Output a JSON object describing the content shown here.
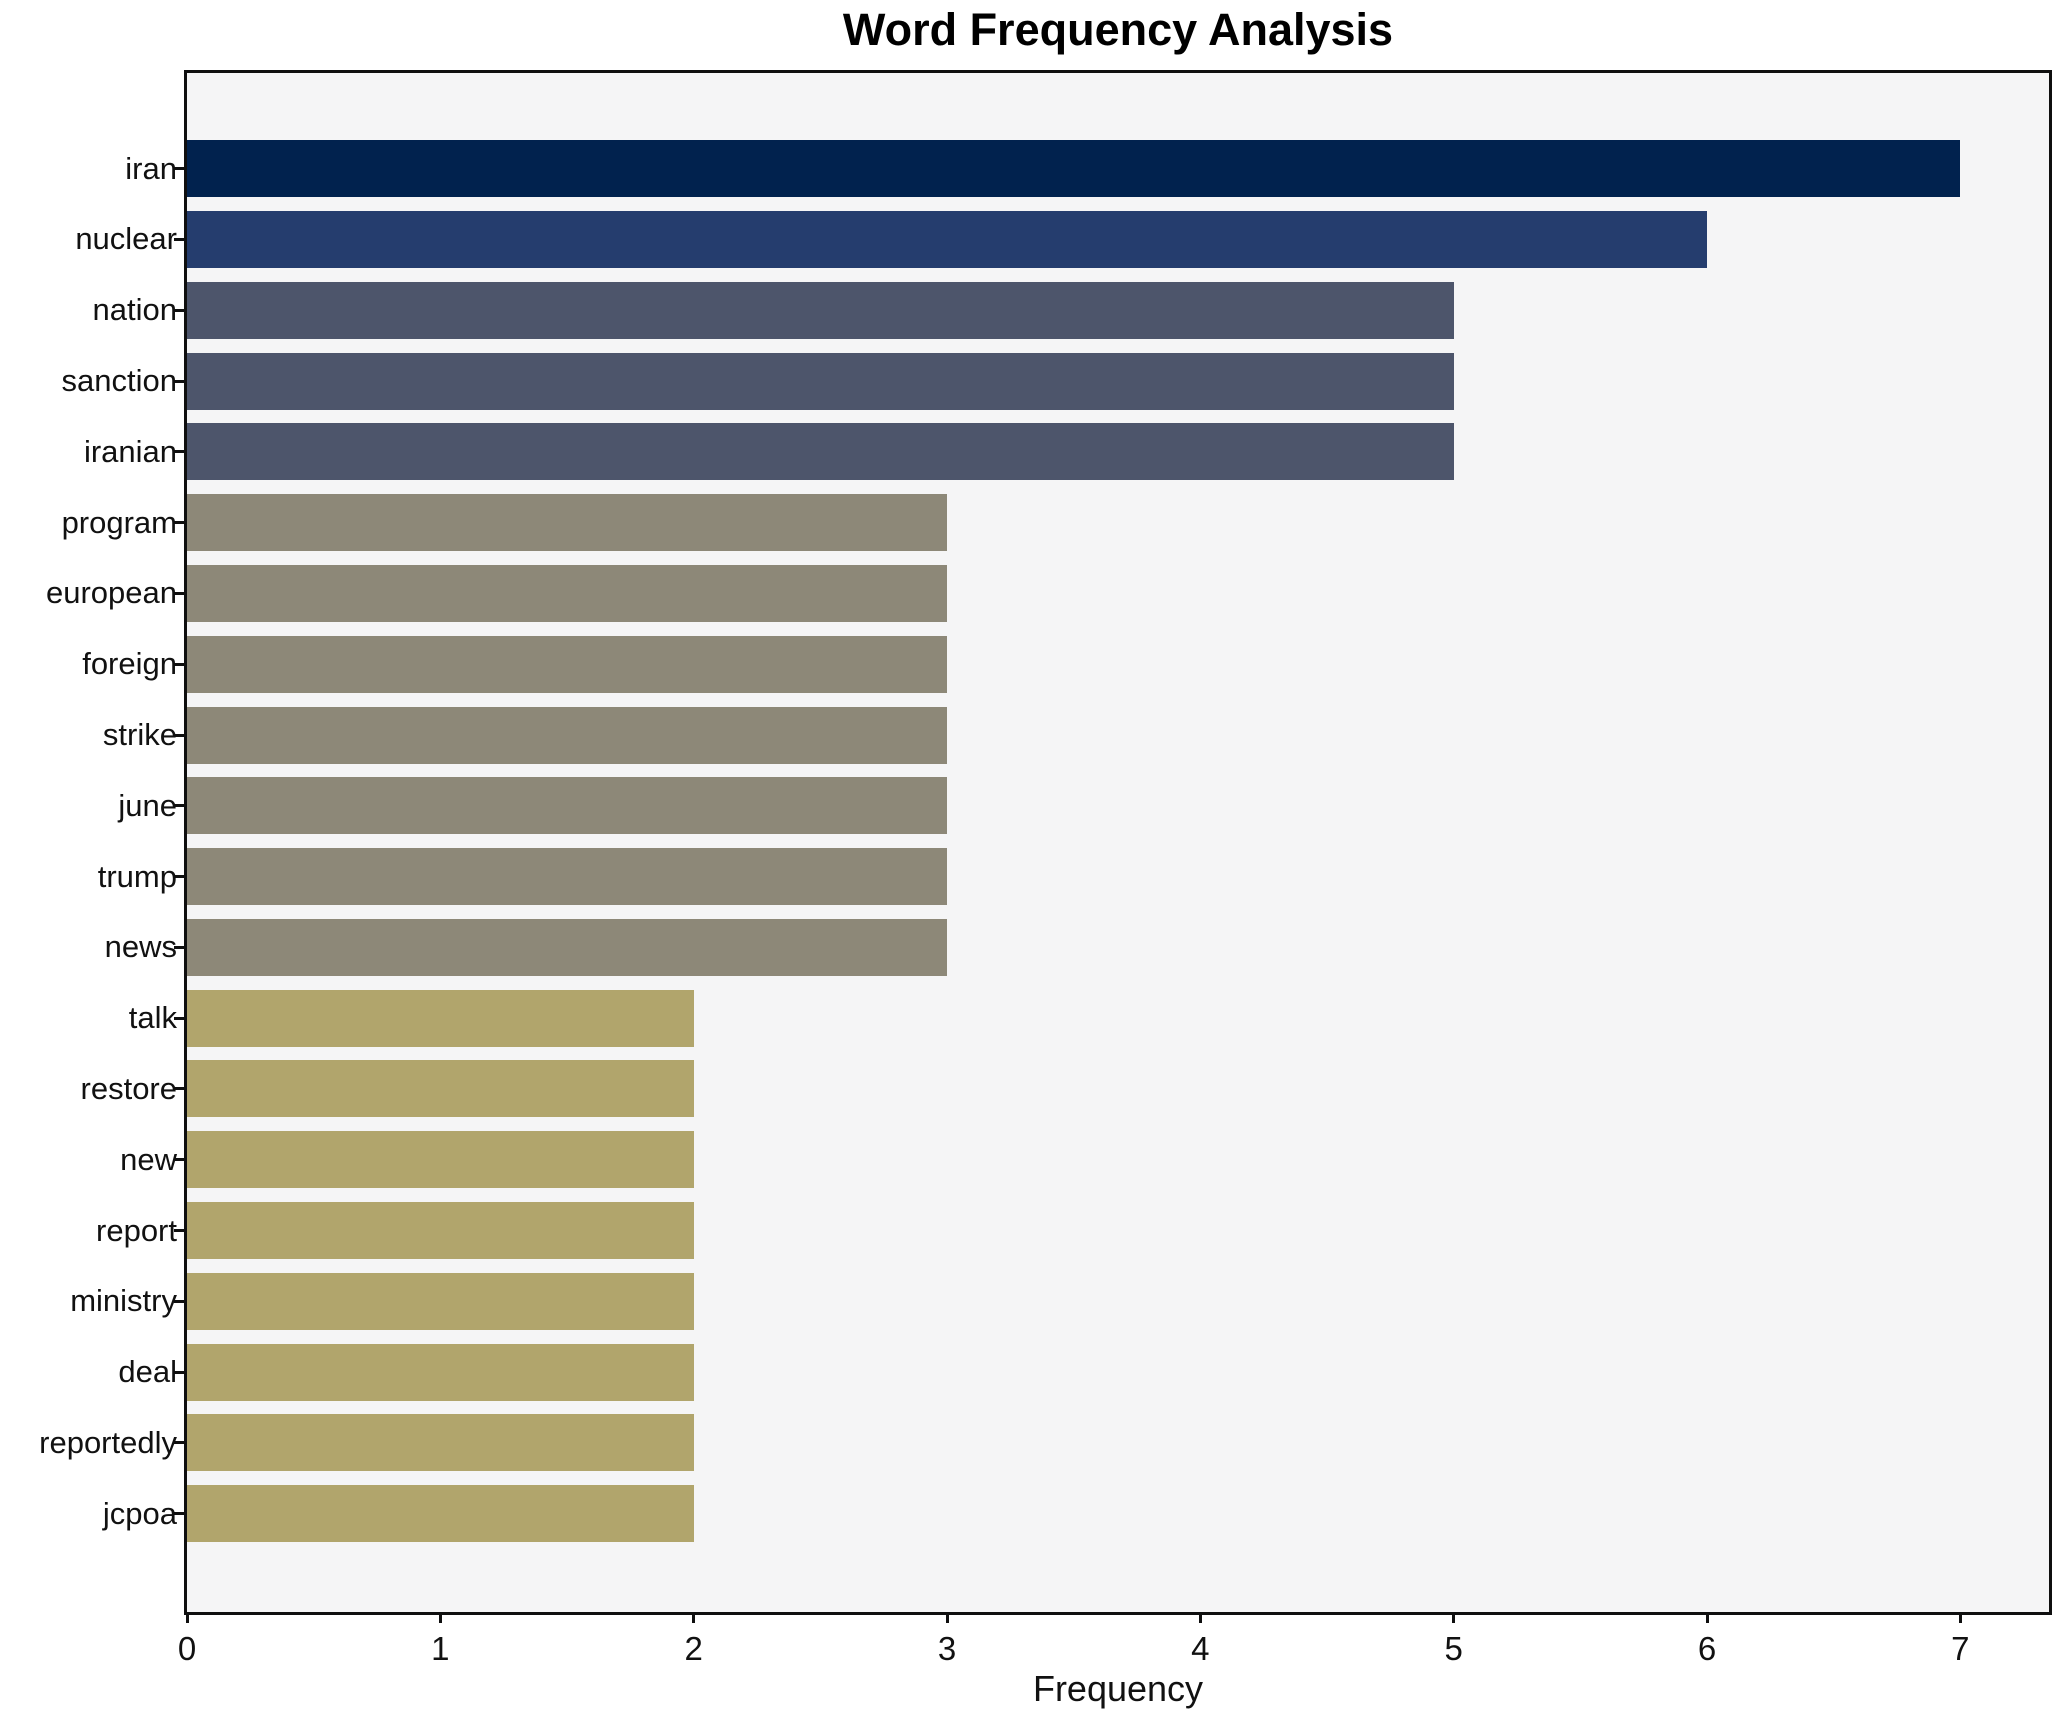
{
  "title": "Word Frequency Analysis",
  "chart_data": {
    "type": "bar",
    "orientation": "horizontal",
    "title": "Word Frequency Analysis",
    "xlabel": "Frequency",
    "ylabel": "",
    "categories": [
      "iran",
      "nuclear",
      "nation",
      "sanction",
      "iranian",
      "program",
      "european",
      "foreign",
      "strike",
      "june",
      "trump",
      "news",
      "talk",
      "restore",
      "new",
      "report",
      "ministry",
      "deal",
      "reportedly",
      "jcpoa"
    ],
    "values": [
      7,
      6,
      5,
      5,
      5,
      3,
      3,
      3,
      3,
      3,
      3,
      3,
      2,
      2,
      2,
      2,
      2,
      2,
      2,
      2
    ],
    "xticks": [
      0,
      1,
      2,
      3,
      4,
      5,
      6,
      7
    ],
    "xlim": [
      0,
      7.35
    ],
    "grid": false,
    "legend": null,
    "colors": {
      "bar_color_by_value": {
        "7": "#01224e",
        "6": "#253d6e",
        "5": "#4d556b",
        "3": "#8d8878",
        "2": "#b1a56c"
      },
      "plot_background": "#f5f5f6",
      "figure_background": "#ffffff",
      "spine": "#0f0f0f",
      "text": "#111111"
    }
  }
}
